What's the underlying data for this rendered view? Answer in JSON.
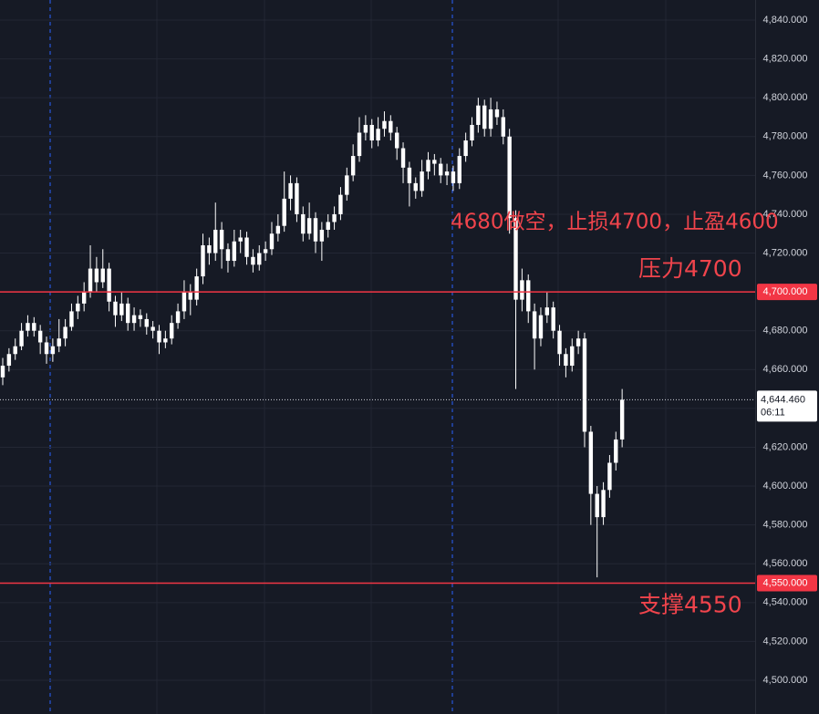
{
  "chart_data": {
    "type": "candlestick",
    "color": "#ffffff",
    "ylim": [
      4500,
      4840
    ],
    "yticks": [
      {
        "value": 4500,
        "label": "4,500.000"
      },
      {
        "value": 4520,
        "label": "4,520.000"
      },
      {
        "value": 4540,
        "label": "4,540.000"
      },
      {
        "value": 4560,
        "label": "4,560.000"
      },
      {
        "value": 4580,
        "label": "4,580.000"
      },
      {
        "value": 4600,
        "label": "4,600.000"
      },
      {
        "value": 4620,
        "label": "4,620.000"
      },
      {
        "value": 4640,
        "label": "4,640.000"
      },
      {
        "value": 4660,
        "label": "4,660.000"
      },
      {
        "value": 4680,
        "label": "4,680.000"
      },
      {
        "value": 4700,
        "label": "4,700.000"
      },
      {
        "value": 4720,
        "label": "4,720.000"
      },
      {
        "value": 4740,
        "label": "4,740.000"
      },
      {
        "value": 4760,
        "label": "4,760.000"
      },
      {
        "value": 4780,
        "label": "4,780.000"
      },
      {
        "value": 4800,
        "label": "4,800.000"
      },
      {
        "value": 4820,
        "label": "4,820.000"
      },
      {
        "value": 4840,
        "label": "4,840.000"
      }
    ],
    "grid": true,
    "levels": [
      {
        "value": 4700,
        "label": "4,700.000",
        "color": "#f23645",
        "text": "压力4700"
      },
      {
        "value": 4550,
        "label": "4,550.000",
        "color": "#f23645",
        "text": "支撑4550"
      }
    ],
    "current_price": {
      "value": 4644.46,
      "label": "4,644.460",
      "countdown": "06:11"
    },
    "annotation": "4680做空，止损4700，止盈4600",
    "ohlc": [
      [
        4656,
        4666,
        4652,
        4662
      ],
      [
        4662,
        4671,
        4659,
        4668
      ],
      [
        4668,
        4676,
        4665,
        4672
      ],
      [
        4672,
        4684,
        4670,
        4680
      ],
      [
        4680,
        4688,
        4677,
        4684
      ],
      [
        4684,
        4687,
        4677,
        4680
      ],
      [
        4680,
        4683,
        4668,
        4674
      ],
      [
        4674,
        4677,
        4663,
        4668
      ],
      [
        4668,
        4676,
        4664,
        4672
      ],
      [
        4672,
        4686,
        4669,
        4676
      ],
      [
        4676,
        4686,
        4672,
        4682
      ],
      [
        4682,
        4694,
        4680,
        4690
      ],
      [
        4690,
        4698,
        4686,
        4694
      ],
      [
        4694,
        4705,
        4690,
        4700
      ],
      [
        4700,
        4724,
        4697,
        4712
      ],
      [
        4712,
        4718,
        4700,
        4705
      ],
      [
        4705,
        4722,
        4702,
        4712
      ],
      [
        4712,
        4715,
        4690,
        4695
      ],
      [
        4695,
        4698,
        4682,
        4688
      ],
      [
        4688,
        4700,
        4685,
        4694
      ],
      [
        4694,
        4697,
        4680,
        4684
      ],
      [
        4684,
        4692,
        4680,
        4688
      ],
      [
        4688,
        4691,
        4682,
        4686
      ],
      [
        4686,
        4689,
        4678,
        4682
      ],
      [
        4682,
        4685,
        4676,
        4680
      ],
      [
        4680,
        4683,
        4668,
        4674
      ],
      [
        4674,
        4680,
        4671,
        4676
      ],
      [
        4676,
        4688,
        4673,
        4684
      ],
      [
        4684,
        4694,
        4681,
        4690
      ],
      [
        4690,
        4706,
        4686,
        4700
      ],
      [
        4700,
        4704,
        4688,
        4696
      ],
      [
        4696,
        4712,
        4693,
        4708
      ],
      [
        4708,
        4730,
        4704,
        4724
      ],
      [
        4724,
        4728,
        4714,
        4720
      ],
      [
        4720,
        4746,
        4716,
        4732
      ],
      [
        4732,
        4736,
        4712,
        4722
      ],
      [
        4722,
        4725,
        4710,
        4716
      ],
      [
        4716,
        4732,
        4713,
        4726
      ],
      [
        4726,
        4732,
        4720,
        4728
      ],
      [
        4728,
        4731,
        4714,
        4718
      ],
      [
        4718,
        4722,
        4710,
        4714
      ],
      [
        4714,
        4724,
        4711,
        4720
      ],
      [
        4720,
        4726,
        4716,
        4722
      ],
      [
        4722,
        4736,
        4719,
        4730
      ],
      [
        4730,
        4740,
        4726,
        4734
      ],
      [
        4734,
        4762,
        4731,
        4748
      ],
      [
        4748,
        4760,
        4742,
        4756
      ],
      [
        4756,
        4759,
        4736,
        4740
      ],
      [
        4740,
        4744,
        4726,
        4730
      ],
      [
        4730,
        4746,
        4727,
        4738
      ],
      [
        4738,
        4741,
        4720,
        4726
      ],
      [
        4726,
        4736,
        4716,
        4732
      ],
      [
        4732,
        4740,
        4728,
        4736
      ],
      [
        4736,
        4744,
        4732,
        4740
      ],
      [
        4740,
        4754,
        4737,
        4750
      ],
      [
        4750,
        4764,
        4747,
        4760
      ],
      [
        4760,
        4776,
        4757,
        4770
      ],
      [
        4770,
        4790,
        4767,
        4782
      ],
      [
        4782,
        4791,
        4778,
        4786
      ],
      [
        4786,
        4789,
        4774,
        4778
      ],
      [
        4778,
        4790,
        4775,
        4784
      ],
      [
        4784,
        4793,
        4780,
        4788
      ],
      [
        4788,
        4791,
        4778,
        4782
      ],
      [
        4782,
        4785,
        4768,
        4774
      ],
      [
        4774,
        4777,
        4756,
        4764
      ],
      [
        4764,
        4767,
        4744,
        4756
      ],
      [
        4756,
        4759,
        4748,
        4752
      ],
      [
        4752,
        4768,
        4749,
        4762
      ],
      [
        4762,
        4772,
        4758,
        4768
      ],
      [
        4768,
        4771,
        4760,
        4766
      ],
      [
        4766,
        4769,
        4756,
        4760
      ],
      [
        4760,
        4766,
        4755,
        4762
      ],
      [
        4762,
        4765,
        4752,
        4756
      ],
      [
        4756,
        4774,
        4753,
        4770
      ],
      [
        4770,
        4782,
        4767,
        4778
      ],
      [
        4778,
        4790,
        4775,
        4786
      ],
      [
        4786,
        4800,
        4782,
        4796
      ],
      [
        4796,
        4799,
        4780,
        4784
      ],
      [
        4784,
        4800,
        4780,
        4794
      ],
      [
        4794,
        4798,
        4786,
        4790
      ],
      [
        4790,
        4794,
        4776,
        4780
      ],
      [
        4780,
        4784,
        4730,
        4738
      ],
      [
        4738,
        4742,
        4650,
        4696
      ],
      [
        4696,
        4712,
        4690,
        4706
      ],
      [
        4706,
        4709,
        4684,
        4690
      ],
      [
        4690,
        4694,
        4660,
        4676
      ],
      [
        4676,
        4692,
        4672,
        4688
      ],
      [
        4688,
        4700,
        4684,
        4692
      ],
      [
        4692,
        4695,
        4676,
        4680
      ],
      [
        4680,
        4683,
        4662,
        4668
      ],
      [
        4668,
        4671,
        4656,
        4662
      ],
      [
        4662,
        4676,
        4659,
        4672
      ],
      [
        4672,
        4680,
        4668,
        4676
      ],
      [
        4676,
        4679,
        4620,
        4628
      ],
      [
        4628,
        4631,
        4580,
        4596
      ],
      [
        4596,
        4600,
        4553,
        4584
      ],
      [
        4584,
        4602,
        4580,
        4598
      ],
      [
        4598,
        4616,
        4594,
        4612
      ],
      [
        4612,
        4628,
        4608,
        4624
      ],
      [
        4624,
        4650,
        4620,
        4644.46
      ]
    ]
  }
}
